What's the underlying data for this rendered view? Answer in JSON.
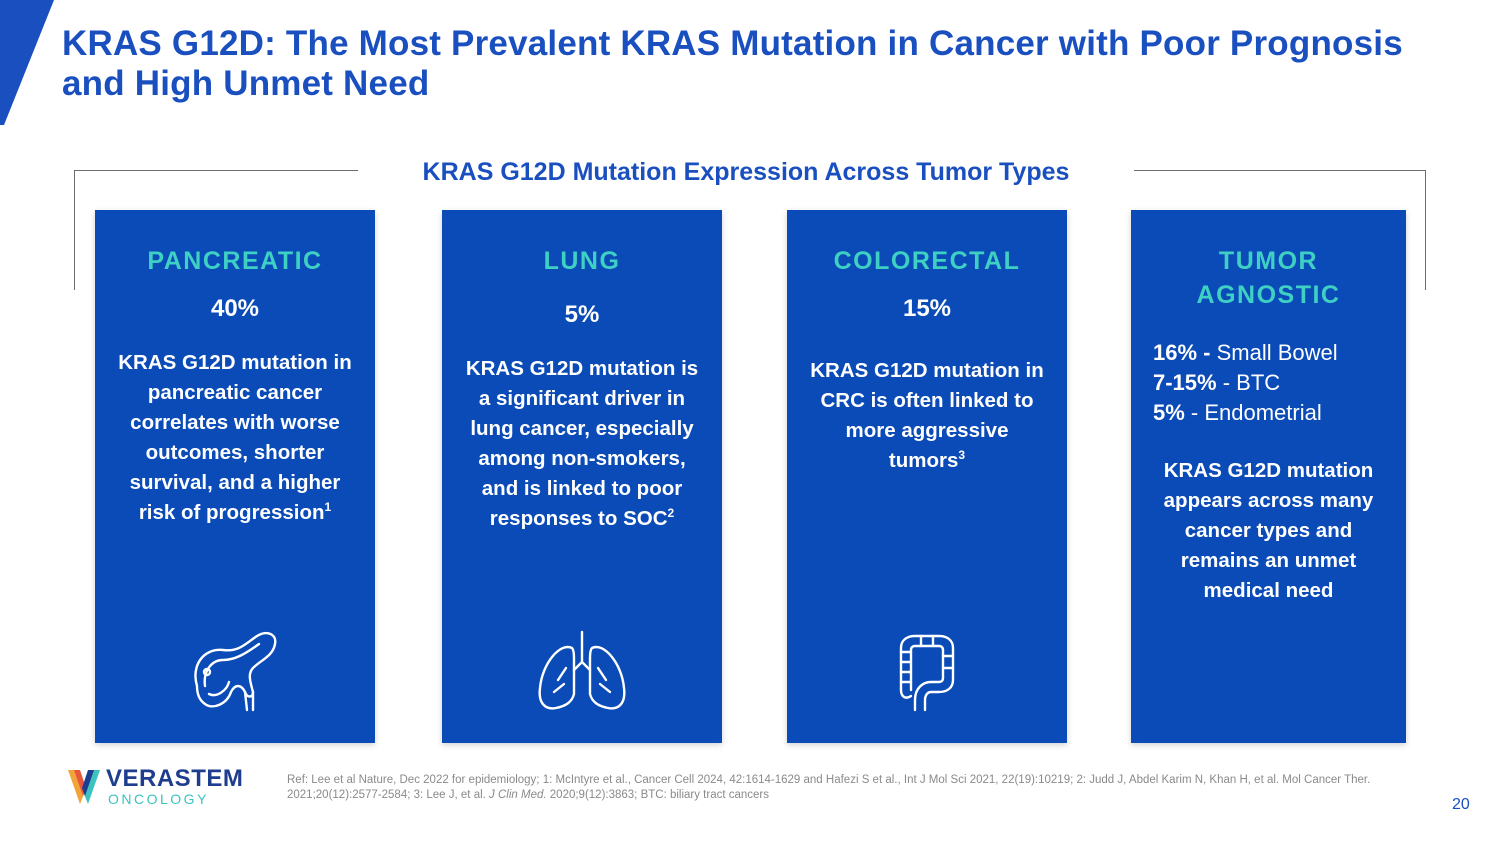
{
  "slide": {
    "title": "KRAS G12D: The Most Prevalent KRAS Mutation in Cancer with Poor Prognosis and High Unmet Need",
    "section_heading": "KRAS G12D Mutation Expression Across Tumor Types",
    "page_number": "20",
    "accent_color": "#1a4fbf",
    "card_color": "#0a4bb8",
    "card_title_color": "#3fd0c4"
  },
  "cards": {
    "pancreatic": {
      "title": "PANCREATIC",
      "percent": "40%",
      "body": "KRAS G12D mutation in pancreatic cancer correlates with worse outcomes, shorter survival, and a higher risk of progression",
      "footnote": "1",
      "icon": "pancreas-icon"
    },
    "lung": {
      "title": "LUNG",
      "percent": "5%",
      "body": "KRAS G12D mutation is a significant driver in lung cancer, especially among non-smokers, and is linked to poor responses to SOC",
      "footnote": "2",
      "icon": "lungs-icon"
    },
    "colorectal": {
      "title": "COLORECTAL",
      "percent": "15%",
      "body": "KRAS G12D mutation in CRC is often linked to more aggressive tumors",
      "footnote": "3",
      "icon": "colon-icon"
    },
    "agnostic": {
      "title_line1": "TUMOR",
      "title_line2": "AGNOSTIC",
      "stats": [
        {
          "value": "16% -",
          "label": " Small Bowel"
        },
        {
          "value": "7-15%",
          "label": " - BTC"
        },
        {
          "value": "5%",
          "label": " - Endometrial"
        }
      ],
      "body": "KRAS G12D mutation appears across many cancer types and remains an unmet medical need"
    }
  },
  "logo": {
    "name": "VERASTEM",
    "subtitle": "ONCOLOGY"
  },
  "reference": {
    "part1": "Ref: Lee et al Nature, Dec 2022 for epidemiology; 1: McIntyre et al., Cancer Cell 2024, 42:1614-1629 and Hafezi S et al., Int J Mol Sci 2021, 22(19):10219; 2: Judd J, Abdel Karim N, Khan H, et al. Mol Cancer Ther. 2021;20(12):2577-2584; 3: Lee J, et al. ",
    "journal": "J Clin Med.",
    "part2": " 2020;9(12):3863; BTC: biliary tract cancers"
  }
}
